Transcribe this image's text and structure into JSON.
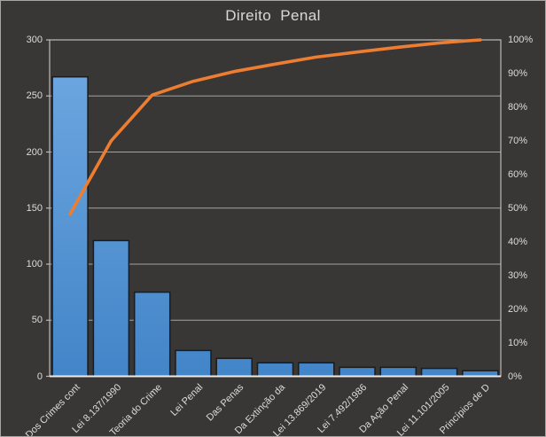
{
  "title": "Direito Penal",
  "colors": {
    "background": "#393636",
    "frame_border": "#a6a6a6",
    "grid": "#a5a2a2",
    "axis": "#bdbaba",
    "baseline": "#eeebeb",
    "bar_gradient_top": "#71a9e2",
    "bar_gradient_bottom": "#4285c8",
    "bar_outline": "#1b1b1b",
    "line": "#ed7d31",
    "text": "#dcdcdc"
  },
  "chart_data": {
    "type": "pareto (bar + cumulative line)",
    "title": "Direito Penal",
    "categories": [
      "Dos Crimes cont",
      "Lei 8.137/1990",
      "Teoria do Crime",
      "Lei Penal",
      "Das Penas",
      "Da Extinção da",
      "Lei 13.869/2019",
      "Lei 7.492/1986",
      "Da Ação Penal",
      "Lei 11.101/2005",
      "Princípios de D"
    ],
    "series": [
      {
        "name": "frequency-bars",
        "type": "bar",
        "axis": "left",
        "values": [
          267,
          121,
          75,
          23,
          16,
          12,
          12,
          8,
          8,
          7,
          5
        ]
      },
      {
        "name": "cumulative-line",
        "type": "line",
        "axis": "right",
        "values_pct": [
          48.2,
          70.0,
          83.6,
          87.7,
          90.6,
          92.8,
          94.9,
          96.4,
          97.8,
          99.1,
          100.0
        ]
      }
    ],
    "left_axis": {
      "min": 0,
      "max": 300,
      "step": 50,
      "tick_labels": [
        "300",
        "250",
        "200",
        "150",
        "100",
        "50",
        "0"
      ]
    },
    "right_axis": {
      "min_pct": 0,
      "max_pct": 100,
      "step_pct": 10,
      "tick_labels": [
        "100%",
        "90%",
        "80%",
        "70%",
        "60%",
        "50%",
        "40%",
        "30%",
        "20%",
        "10%",
        "0%"
      ]
    },
    "grid": true,
    "legend": false
  }
}
